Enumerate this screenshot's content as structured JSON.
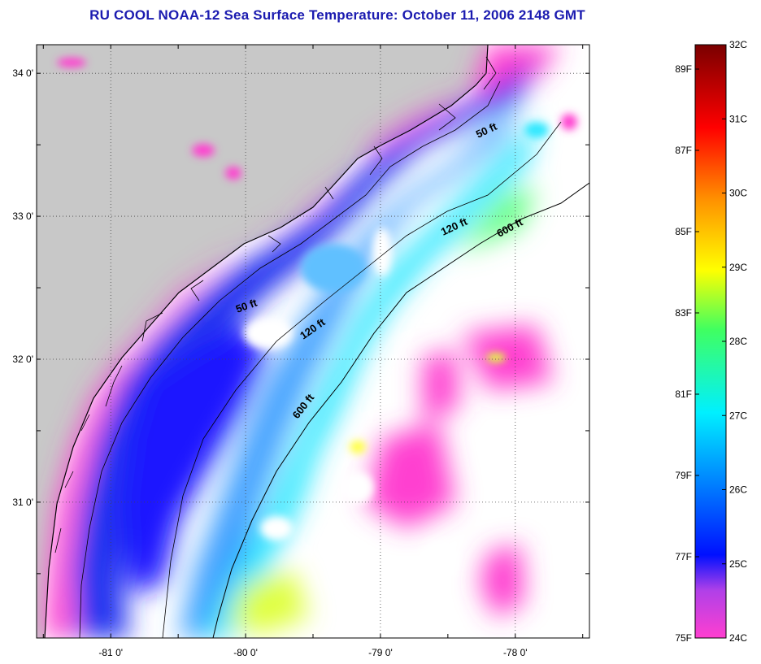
{
  "title": "RU COOL  NOAA-12  Sea Surface Temperature:  October 11, 2006 2148 GMT",
  "map": {
    "lon_range": [
      -81.55,
      -77.45
    ],
    "lat_range": [
      30.05,
      34.2
    ],
    "lon_ticks": [
      {
        "value": -81,
        "label": "-81 0'"
      },
      {
        "value": -80,
        "label": "-80 0'"
      },
      {
        "value": -79,
        "label": "-79 0'"
      },
      {
        "value": -78,
        "label": "-78 0'"
      }
    ],
    "lat_ticks": [
      {
        "value": 34,
        "label": "34 0'"
      },
      {
        "value": 33,
        "label": "33 0'"
      },
      {
        "value": 32,
        "label": "32 0'"
      },
      {
        "value": 31,
        "label": "31 0'"
      }
    ],
    "depth_labels": [
      {
        "text": "50 ft"
      },
      {
        "text": "120 ft"
      },
      {
        "text": "600 ft"
      },
      {
        "text": "50 ft"
      },
      {
        "text": "120 ft"
      },
      {
        "text": "600 ft"
      }
    ],
    "colors": {
      "land": "#c8c8c8",
      "no_data": "#ffffff"
    }
  },
  "colorbar": {
    "celsius_min": 24,
    "celsius_max": 32,
    "fahrenheit_min": 75,
    "fahrenheit_max": 89.6,
    "celsius_labels": [
      "32C",
      "31C",
      "30C",
      "29C",
      "28C",
      "27C",
      "26C",
      "25C",
      "24C"
    ],
    "fahrenheit_labels": [
      "89F",
      "87F",
      "85F",
      "83F",
      "81F",
      "79F",
      "77F",
      "75F"
    ],
    "stops": [
      "#ff3fd0",
      "#b040e8",
      "#0010ff",
      "#0080ff",
      "#00f0ff",
      "#40ff60",
      "#ffff00",
      "#ff9000",
      "#ff0000",
      "#7a0000"
    ]
  }
}
